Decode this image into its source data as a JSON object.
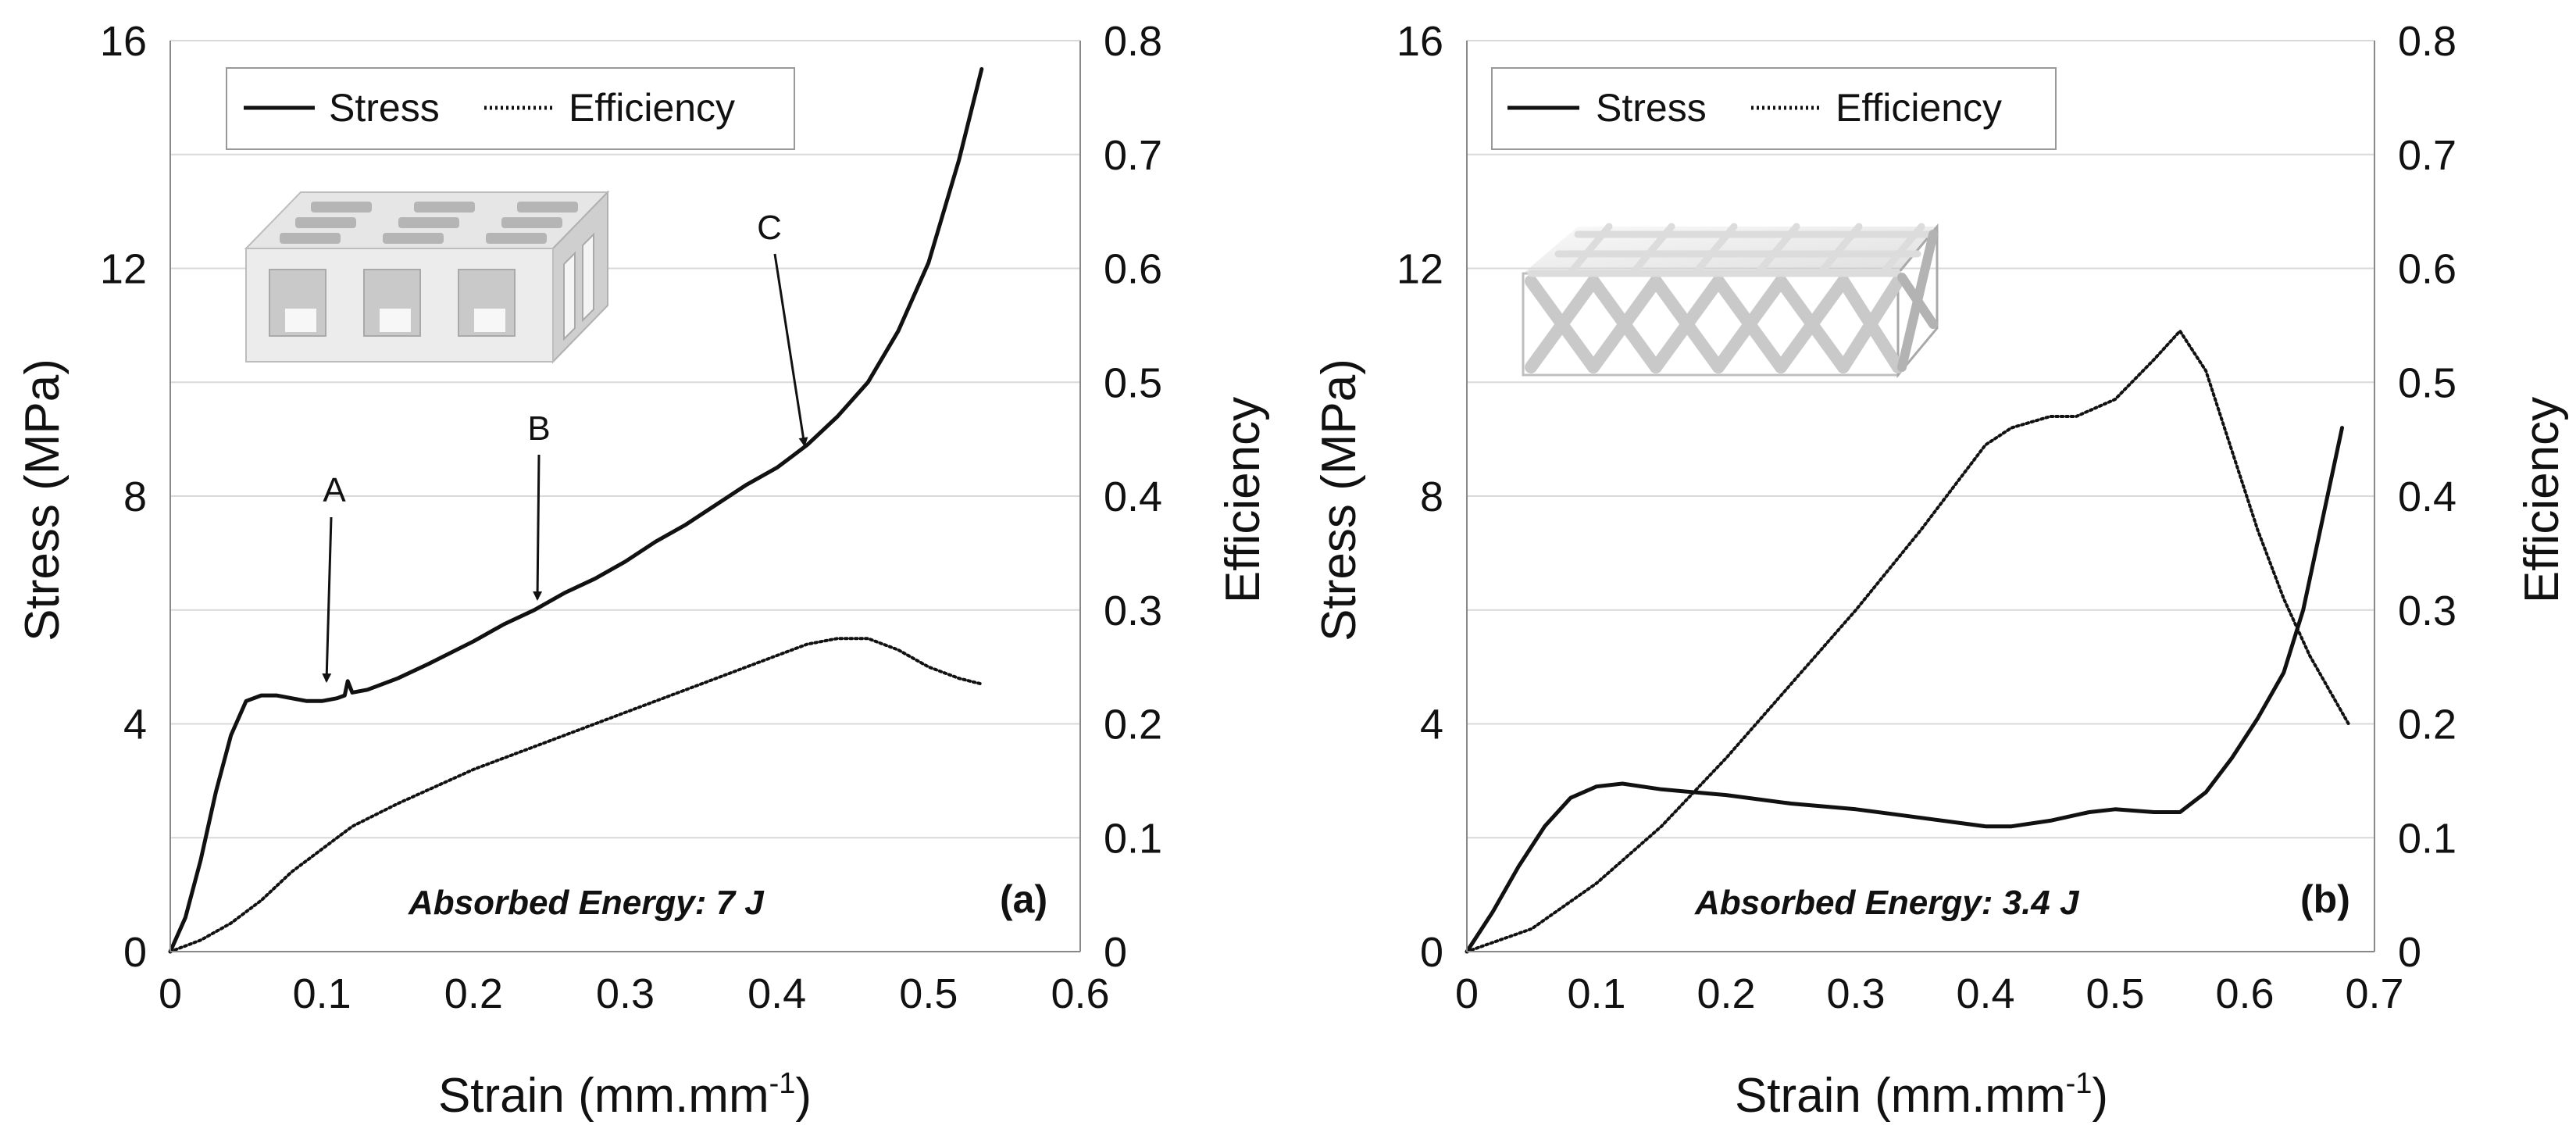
{
  "chart_data": [
    {
      "type": "line",
      "panel": "(a)",
      "xlabel": "Strain (mm.mm",
      "xlabel_sup": "-1",
      "xlabel_end": ")",
      "ylabel": "Stress (MPa)",
      "y2label": "Efficiency",
      "xlim": [
        0,
        0.6
      ],
      "ylim": [
        0,
        16
      ],
      "y2lim": [
        0,
        0.8
      ],
      "x_ticks": [
        "0",
        "0.1",
        "0.2",
        "0.3",
        "0.4",
        "0.5",
        "0.6"
      ],
      "y_ticks": [
        "0",
        "4",
        "8",
        "12",
        "16"
      ],
      "y2_ticks": [
        "0",
        "0.1",
        "0.2",
        "0.3",
        "0.4",
        "0.5",
        "0.6",
        "0.7",
        "0.8"
      ],
      "legend": [
        "Stress",
        "Efficiency"
      ],
      "energy_label": "Absorbed Energy: 7 J",
      "series": [
        {
          "name": "Stress",
          "axis": "left",
          "style": "solid",
          "points": [
            [
              0,
              0
            ],
            [
              0.01,
              0.6
            ],
            [
              0.02,
              1.6
            ],
            [
              0.03,
              2.8
            ],
            [
              0.04,
              3.8
            ],
            [
              0.05,
              4.4
            ],
            [
              0.06,
              4.5
            ],
            [
              0.07,
              4.5
            ],
            [
              0.08,
              4.45
            ],
            [
              0.09,
              4.4
            ],
            [
              0.1,
              4.4
            ],
            [
              0.11,
              4.45
            ],
            [
              0.115,
              4.5
            ],
            [
              0.117,
              4.75
            ],
            [
              0.12,
              4.55
            ],
            [
              0.13,
              4.6
            ],
            [
              0.15,
              4.8
            ],
            [
              0.17,
              5.05
            ],
            [
              0.2,
              5.45
            ],
            [
              0.22,
              5.75
            ],
            [
              0.24,
              6.0
            ],
            [
              0.26,
              6.3
            ],
            [
              0.28,
              6.55
            ],
            [
              0.3,
              6.85
            ],
            [
              0.32,
              7.2
            ],
            [
              0.34,
              7.5
            ],
            [
              0.36,
              7.85
            ],
            [
              0.38,
              8.2
            ],
            [
              0.4,
              8.5
            ],
            [
              0.42,
              8.9
            ],
            [
              0.44,
              9.4
            ],
            [
              0.46,
              10.0
            ],
            [
              0.48,
              10.9
            ],
            [
              0.5,
              12.1
            ],
            [
              0.52,
              13.9
            ],
            [
              0.535,
              15.5
            ]
          ]
        },
        {
          "name": "Efficiency",
          "axis": "right",
          "style": "dotted",
          "points": [
            [
              0,
              0
            ],
            [
              0.02,
              0.01
            ],
            [
              0.04,
              0.025
            ],
            [
              0.06,
              0.045
            ],
            [
              0.08,
              0.07
            ],
            [
              0.1,
              0.09
            ],
            [
              0.12,
              0.11
            ],
            [
              0.15,
              0.13
            ],
            [
              0.2,
              0.16
            ],
            [
              0.25,
              0.185
            ],
            [
              0.3,
              0.21
            ],
            [
              0.35,
              0.235
            ],
            [
              0.4,
              0.26
            ],
            [
              0.42,
              0.27
            ],
            [
              0.44,
              0.275
            ],
            [
              0.46,
              0.275
            ],
            [
              0.48,
              0.265
            ],
            [
              0.5,
              0.25
            ],
            [
              0.52,
              0.24
            ],
            [
              0.535,
              0.235
            ]
          ]
        }
      ],
      "annotations": [
        {
          "label": "A",
          "x": 0.1,
          "y": 4.4,
          "text_x": 0.108,
          "text_y": 7.7
        },
        {
          "label": "B",
          "x": 0.24,
          "y": 6.0,
          "text_x": 0.243,
          "text_y": 8.9
        },
        {
          "label": "C",
          "x": 0.415,
          "y": 8.8,
          "text_x": 0.395,
          "text_y": 12.7
        }
      ]
    },
    {
      "type": "line",
      "panel": "(b)",
      "xlabel": "Strain (mm.mm",
      "xlabel_sup": "-1",
      "xlabel_end": ")",
      "ylabel": "Stress (MPa)",
      "y2label": "Efficiency",
      "xlim": [
        0,
        0.7
      ],
      "ylim": [
        0,
        16
      ],
      "y2lim": [
        0,
        0.8
      ],
      "x_ticks": [
        "0",
        "0.1",
        "0.2",
        "0.3",
        "0.4",
        "0.5",
        "0.6",
        "0.7"
      ],
      "y_ticks": [
        "0",
        "4",
        "8",
        "12",
        "16"
      ],
      "y2_ticks": [
        "0",
        "0.1",
        "0.2",
        "0.3",
        "0.4",
        "0.5",
        "0.6",
        "0.7",
        "0.8"
      ],
      "legend": [
        "Stress",
        "Efficiency"
      ],
      "energy_label": "Absorbed Energy: 3.4 J",
      "series": [
        {
          "name": "Stress",
          "axis": "left",
          "style": "solid",
          "points": [
            [
              0,
              0
            ],
            [
              0.02,
              0.7
            ],
            [
              0.04,
              1.5
            ],
            [
              0.06,
              2.2
            ],
            [
              0.08,
              2.7
            ],
            [
              0.1,
              2.9
            ],
            [
              0.12,
              2.95
            ],
            [
              0.15,
              2.85
            ],
            [
              0.2,
              2.75
            ],
            [
              0.25,
              2.6
            ],
            [
              0.3,
              2.5
            ],
            [
              0.35,
              2.35
            ],
            [
              0.4,
              2.2
            ],
            [
              0.42,
              2.2
            ],
            [
              0.45,
              2.3
            ],
            [
              0.48,
              2.45
            ],
            [
              0.5,
              2.5
            ],
            [
              0.53,
              2.45
            ],
            [
              0.55,
              2.45
            ],
            [
              0.57,
              2.8
            ],
            [
              0.59,
              3.4
            ],
            [
              0.61,
              4.1
            ],
            [
              0.63,
              4.9
            ],
            [
              0.645,
              6.0
            ],
            [
              0.66,
              7.6
            ],
            [
              0.675,
              9.2
            ]
          ]
        },
        {
          "name": "Efficiency",
          "axis": "right",
          "style": "dotted",
          "points": [
            [
              0,
              0
            ],
            [
              0.05,
              0.02
            ],
            [
              0.1,
              0.06
            ],
            [
              0.15,
              0.11
            ],
            [
              0.2,
              0.17
            ],
            [
              0.25,
              0.235
            ],
            [
              0.3,
              0.3
            ],
            [
              0.35,
              0.37
            ],
            [
              0.38,
              0.415
            ],
            [
              0.4,
              0.445
            ],
            [
              0.42,
              0.46
            ],
            [
              0.45,
              0.47
            ],
            [
              0.47,
              0.47
            ],
            [
              0.5,
              0.485
            ],
            [
              0.53,
              0.52
            ],
            [
              0.55,
              0.545
            ],
            [
              0.57,
              0.51
            ],
            [
              0.59,
              0.44
            ],
            [
              0.61,
              0.37
            ],
            [
              0.63,
              0.31
            ],
            [
              0.65,
              0.26
            ],
            [
              0.67,
              0.22
            ],
            [
              0.68,
              0.2
            ]
          ]
        }
      ]
    }
  ]
}
